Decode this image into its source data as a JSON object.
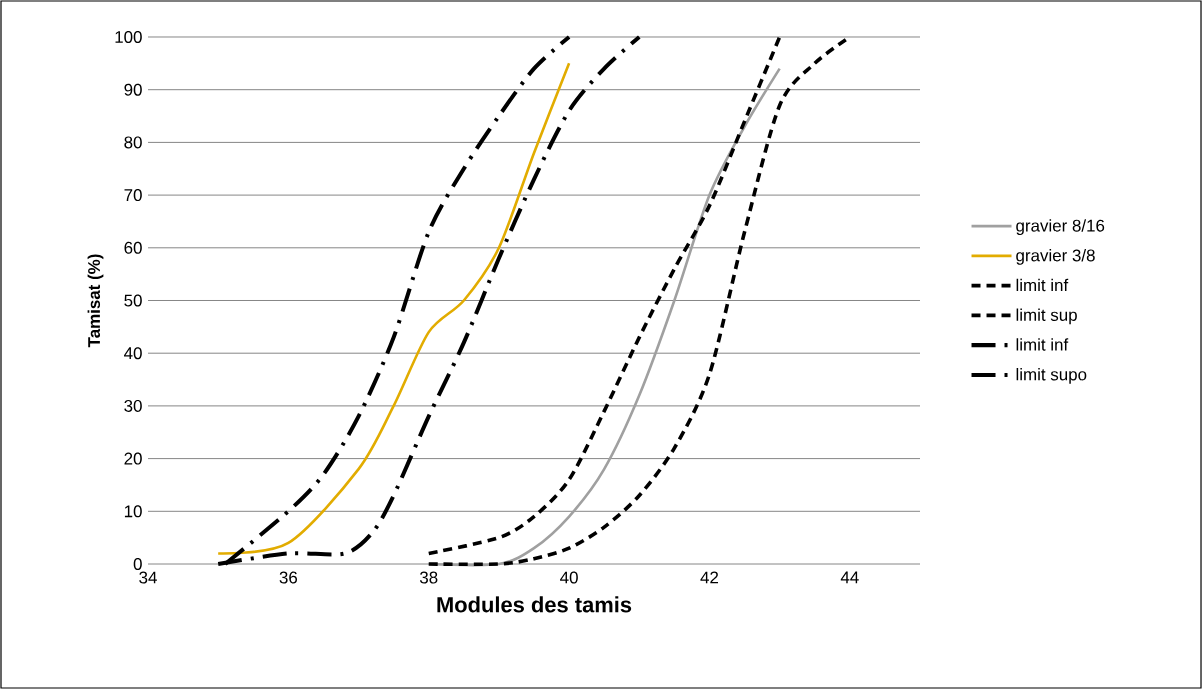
{
  "chart_data": {
    "type": "line",
    "xlabel": "Modules des tamis",
    "ylabel": "Tamisat (%)",
    "xlim": [
      34,
      45
    ],
    "xticks": [
      34,
      36,
      38,
      40,
      42,
      44
    ],
    "ylim": [
      0,
      100
    ],
    "yticks": [
      0,
      10,
      20,
      30,
      40,
      50,
      60,
      70,
      80,
      90,
      100
    ],
    "grid": "y",
    "legend": "right",
    "marker": "none",
    "series": [
      {
        "name": "gravier 8/16",
        "color": "#a0a0a0",
        "line_style": "solid",
        "x": [
          38,
          39,
          39.5,
          40,
          40.5,
          41,
          41.5,
          42,
          42.5,
          43
        ],
        "values": [
          0,
          0,
          3,
          9,
          18,
          32,
          50,
          70,
          83,
          94
        ]
      },
      {
        "name": "gravier 3/8",
        "color": "#e2ac00",
        "line_style": "solid",
        "x": [
          35,
          36,
          37,
          37.5,
          38,
          38.5,
          39,
          39.5,
          40
        ],
        "values": [
          2,
          4,
          18,
          30,
          44,
          50,
          60,
          78,
          95
        ]
      },
      {
        "name": "limit inf",
        "color": "#000000",
        "line_style": "dashed",
        "x": [
          38,
          39,
          39.5,
          40,
          40.5,
          41,
          41.5,
          42,
          42.5,
          43,
          43.5,
          44
        ],
        "values": [
          0,
          0,
          1,
          3,
          7,
          13,
          22,
          36,
          63,
          87,
          95,
          100
        ]
      },
      {
        "name": "limit sup",
        "color": "#000000",
        "line_style": "dashed",
        "x": [
          38,
          39,
          39.5,
          40,
          40.5,
          41,
          41.5,
          42,
          42.5,
          43
        ],
        "values": [
          2,
          5,
          9,
          16,
          29,
          43,
          56,
          68,
          84,
          100
        ]
      },
      {
        "name": "limit inf",
        "color": "#000000",
        "line_style": "dashdot",
        "x": [
          35,
          36,
          36.8,
          37.2,
          37.5,
          38,
          38.5,
          39,
          39.5,
          40,
          40.5,
          41
        ],
        "values": [
          0,
          2,
          2,
          6,
          13,
          28,
          42,
          58,
          73,
          86,
          94,
          100
        ]
      },
      {
        "name": "limit supo",
        "color": "#000000",
        "line_style": "dashdot",
        "x": [
          35.1,
          36,
          36.5,
          37,
          37.5,
          38,
          38.5,
          39,
          39.5,
          40
        ],
        "values": [
          0,
          10,
          17,
          28,
          43,
          63,
          75,
          85,
          94,
          100
        ]
      }
    ]
  }
}
